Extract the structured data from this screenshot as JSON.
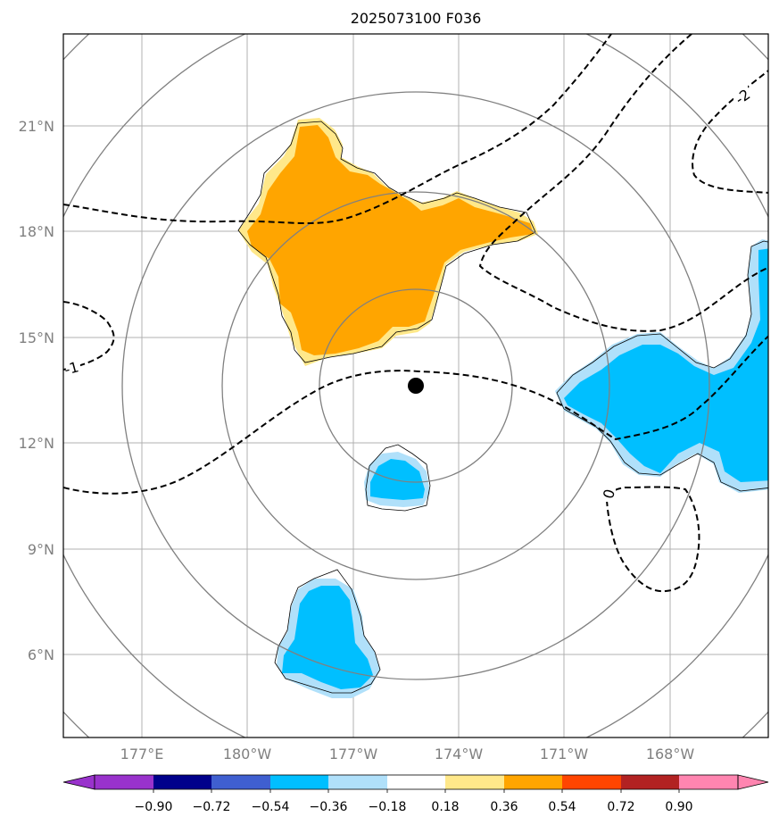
{
  "map": {
    "title": "2025073100 F036",
    "lat_labels": [
      "21°N",
      "18°N",
      "15°N",
      "12°N",
      "9°N",
      "6°N"
    ],
    "lon_labels": [
      "177°E",
      "180°W",
      "177°W",
      "174°W",
      "171°W",
      "168°W"
    ],
    "contour_labels": [
      "-2",
      "-1",
      "0"
    ],
    "center_marker": "storm-center",
    "colors": {
      "orange_fill": "#ffa500",
      "light_yellow": "#ffe88a",
      "cyan_fill": "#00bfff",
      "light_blue": "#b0e0fa",
      "range_rings": "#808080",
      "gridlines": "#b0b0b0"
    }
  },
  "colorbar": {
    "tick_labels": [
      "−0.90",
      "−0.72",
      "−0.54",
      "−0.36",
      "−0.18",
      "0.18",
      "0.36",
      "0.54",
      "0.72",
      "0.90"
    ],
    "colors": [
      "#9932cc",
      "#00008b",
      "#3f5fd0",
      "#00bfff",
      "#b0e0fa",
      "#ffffff",
      "#ffe88a",
      "#ffa500",
      "#ff4500",
      "#b22222",
      "#ff85b0"
    ]
  }
}
